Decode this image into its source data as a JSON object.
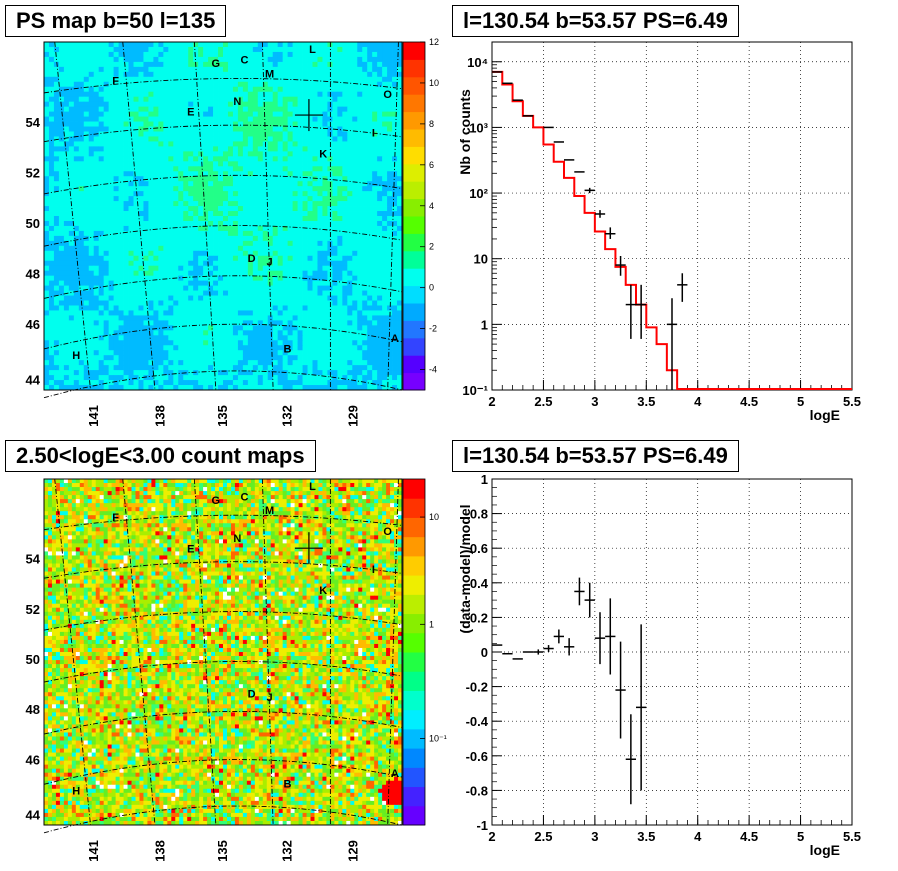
{
  "chart_data": [
    {
      "type": "heatmap",
      "title": "PS map b=50 l=135",
      "x_tick_labels": [
        "141",
        "138",
        "135",
        "132",
        "129"
      ],
      "y_tick_labels": [
        "44",
        "46",
        "48",
        "50",
        "52",
        "54"
      ],
      "colorbar_ticks": [
        "-4",
        "-2",
        "0",
        "2",
        "4",
        "6",
        "8",
        "10",
        "12"
      ],
      "zrange": [
        -5,
        12
      ],
      "colormap": [
        "#5a00ff",
        "#3366ff",
        "#00bbff",
        "#00ffee",
        "#22ff88",
        "#44dd22",
        "#99ee00",
        "#ddee00",
        "#ffbb00",
        "#ff6600",
        "#ff0000"
      ],
      "sources": [
        "A",
        "B",
        "C",
        "D",
        "E",
        "F",
        "G",
        "H",
        "I",
        "J",
        "K",
        "L",
        "M",
        "N",
        "O"
      ],
      "marker": "cross"
    },
    {
      "type": "line",
      "title": "l=130.54 b=53.57 PS=6.49",
      "xlabel": "logE",
      "ylabel": "Nb of counts",
      "xlim": [
        2,
        5.5
      ],
      "ylim": [
        0.1,
        20000
      ],
      "yscale": "log",
      "grid": true,
      "x_tick_labels": [
        "2",
        "2.5",
        "3",
        "3.5",
        "4",
        "4.5",
        "5",
        "5.5"
      ],
      "y_tick_labels": [
        "10⁻¹",
        "1",
        "10",
        "10²",
        "10³",
        "10⁴"
      ],
      "model_color": "#ff0000",
      "model_step": {
        "edges": [
          2.0,
          2.1,
          2.2,
          2.3,
          2.4,
          2.5,
          2.6,
          2.7,
          2.8,
          2.9,
          3.0,
          3.1,
          3.2,
          3.3,
          3.4,
          3.5,
          3.6,
          3.7,
          3.8,
          3.9,
          4.0,
          5.5
        ],
        "values": [
          7000,
          4500,
          2500,
          1500,
          1000,
          550,
          300,
          170,
          90,
          50,
          26,
          14,
          7.5,
          4,
          2,
          0.9,
          0.5,
          0.2,
          0.1,
          0.1,
          0.1
        ]
      },
      "data_points": [
        {
          "x": 2.05,
          "y": 7000,
          "ylo": 7000,
          "yhi": 7000
        },
        {
          "x": 2.15,
          "y": 4700,
          "ylo": 4700,
          "yhi": 4700
        },
        {
          "x": 2.25,
          "y": 2600,
          "ylo": 2600,
          "yhi": 2600
        },
        {
          "x": 2.35,
          "y": 1500,
          "ylo": 1500,
          "yhi": 1500
        },
        {
          "x": 2.55,
          "y": 1000,
          "ylo": 1000,
          "yhi": 1000
        },
        {
          "x": 2.65,
          "y": 600,
          "ylo": 600,
          "yhi": 600
        },
        {
          "x": 2.75,
          "y": 320,
          "ylo": 320,
          "yhi": 320
        },
        {
          "x": 2.85,
          "y": 210,
          "ylo": 210,
          "yhi": 210
        },
        {
          "x": 2.95,
          "y": 110,
          "ylo": 100,
          "yhi": 120
        },
        {
          "x": 3.05,
          "y": 48,
          "ylo": 42,
          "yhi": 55
        },
        {
          "x": 3.15,
          "y": 24,
          "ylo": 20,
          "yhi": 30
        },
        {
          "x": 3.25,
          "y": 8,
          "ylo": 5.5,
          "yhi": 11
        },
        {
          "x": 3.35,
          "y": 2,
          "ylo": 0.6,
          "yhi": 4
        },
        {
          "x": 3.45,
          "y": 2,
          "ylo": 0.6,
          "yhi": 4
        },
        {
          "x": 3.75,
          "y": 1,
          "ylo": 0.1,
          "yhi": 2.5
        },
        {
          "x": 3.85,
          "y": 4,
          "ylo": 2.2,
          "yhi": 6
        }
      ]
    },
    {
      "type": "heatmap",
      "title": "2.50<logE<3.00 count maps",
      "x_tick_labels": [
        "141",
        "138",
        "135",
        "132",
        "129"
      ],
      "y_tick_labels": [
        "44",
        "46",
        "48",
        "50",
        "52",
        "54"
      ],
      "colorbar_ticks": [
        "10",
        "1",
        "10⁻¹"
      ],
      "zscale": "log",
      "colormap": [
        "#6600ff",
        "#3344ff",
        "#00aaff",
        "#00ffee",
        "#33ff77",
        "#66ee22",
        "#aaee00",
        "#eeee00",
        "#ffbb00",
        "#ff6600",
        "#ff0000"
      ],
      "sources": [
        "A",
        "B",
        "C",
        "D",
        "E",
        "F",
        "G",
        "H",
        "I",
        "J",
        "K",
        "L",
        "M",
        "N",
        "O"
      ],
      "marker": "cross"
    },
    {
      "type": "scatter",
      "title": "l=130.54 b=53.57 PS=6.49",
      "xlabel": "logE",
      "ylabel": "(data-model)/model",
      "xlim": [
        2,
        5.5
      ],
      "ylim": [
        -1,
        1
      ],
      "grid": true,
      "x_tick_labels": [
        "2",
        "2.5",
        "3",
        "3.5",
        "4",
        "4.5",
        "5",
        "5.5"
      ],
      "y_tick_labels": [
        "-1",
        "-0.8",
        "-0.6",
        "-0.4",
        "-0.2",
        "0",
        "0.2",
        "0.4",
        "0.6",
        "0.8",
        "1"
      ],
      "points": [
        {
          "x": 2.05,
          "y": 0.04,
          "err": 0.005
        },
        {
          "x": 2.15,
          "y": -0.01,
          "err": 0.005
        },
        {
          "x": 2.25,
          "y": -0.04,
          "err": 0.01
        },
        {
          "x": 2.35,
          "y": 0.0,
          "err": 0.01
        },
        {
          "x": 2.45,
          "y": 0.0,
          "err": 0.015
        },
        {
          "x": 2.55,
          "y": 0.02,
          "err": 0.02
        },
        {
          "x": 2.65,
          "y": 0.09,
          "err": 0.04
        },
        {
          "x": 2.75,
          "y": 0.03,
          "err": 0.05
        },
        {
          "x": 2.85,
          "y": 0.35,
          "err": 0.08
        },
        {
          "x": 2.95,
          "y": 0.3,
          "err": 0.1
        },
        {
          "x": 3.05,
          "y": 0.08,
          "err": 0.15
        },
        {
          "x": 3.15,
          "y": 0.09,
          "err": 0.22
        },
        {
          "x": 3.25,
          "y": -0.22,
          "err": 0.28
        },
        {
          "x": 3.35,
          "y": -0.62,
          "err": 0.26
        },
        {
          "x": 3.45,
          "y": -0.32,
          "err": 0.48
        }
      ]
    }
  ]
}
